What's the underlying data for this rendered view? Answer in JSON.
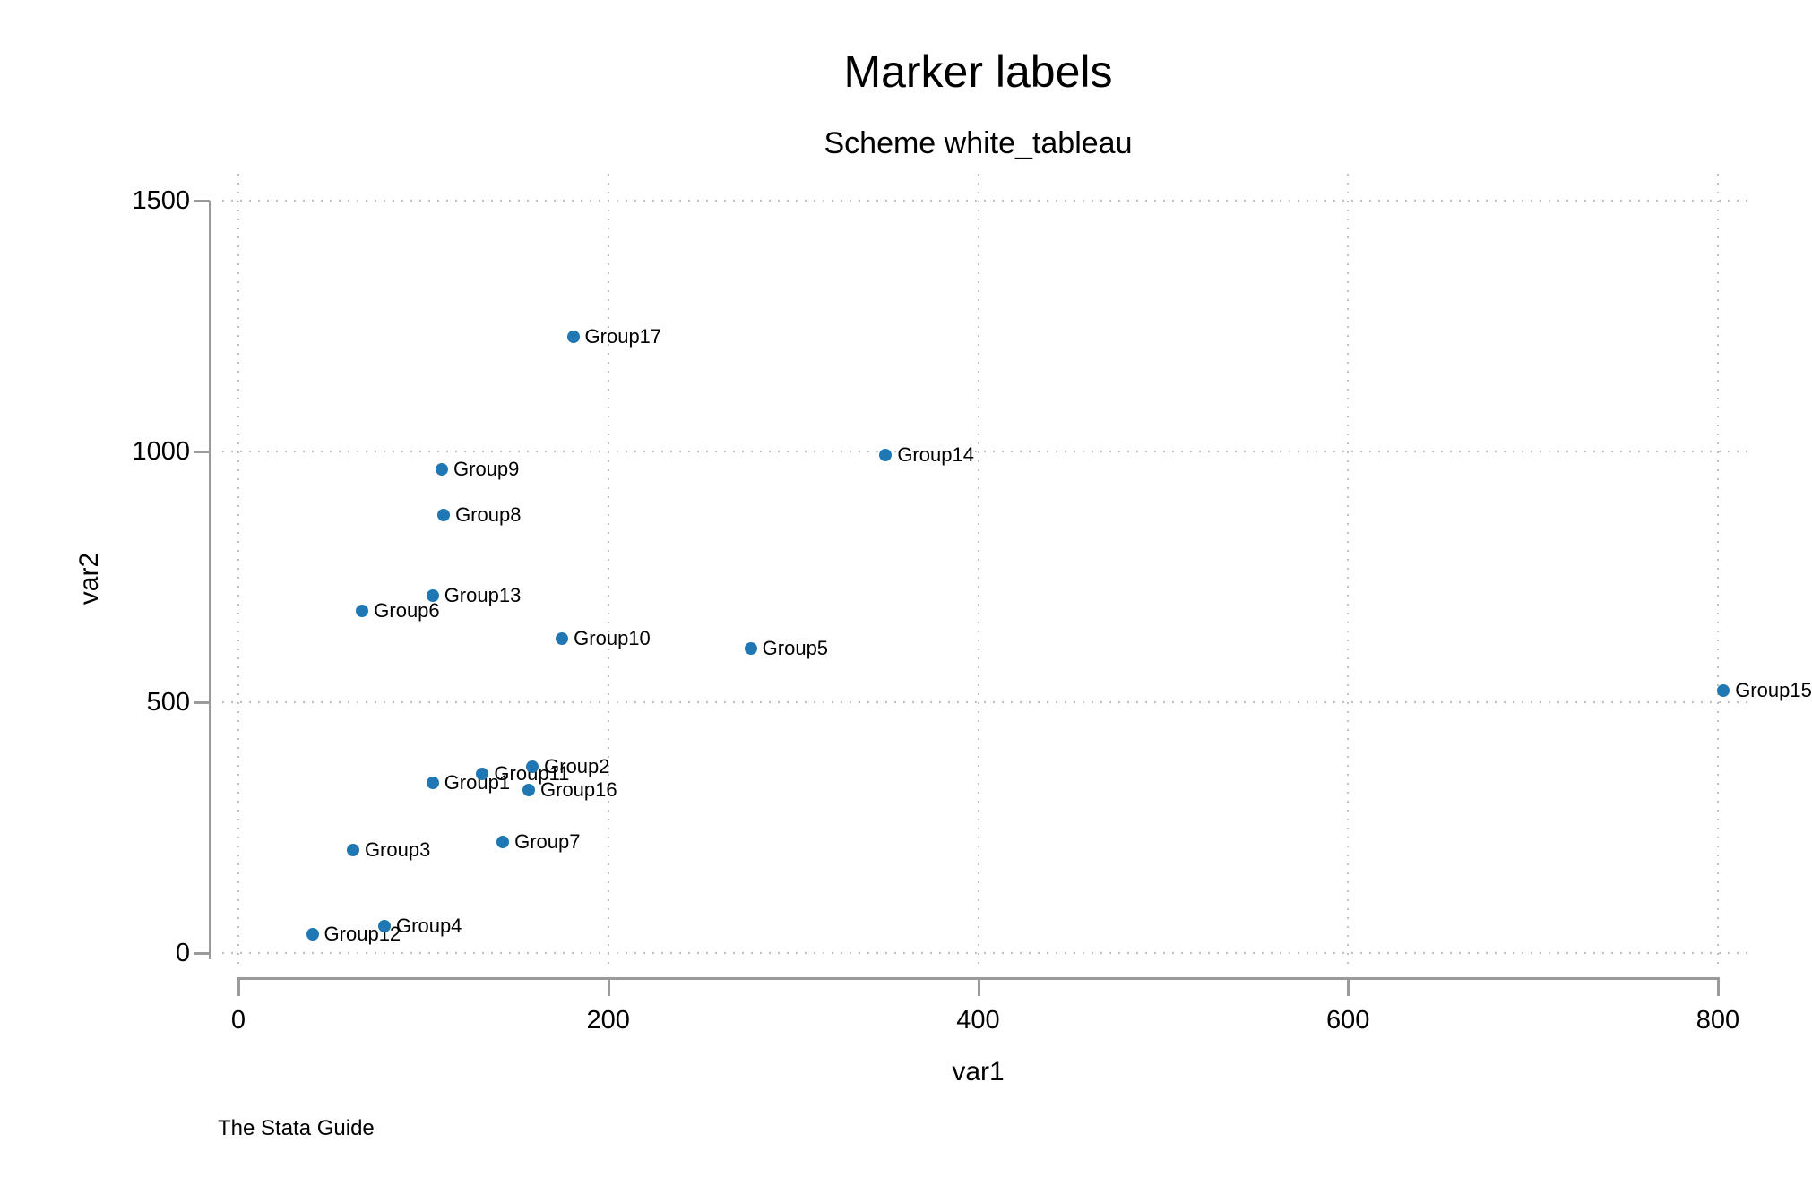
{
  "header": {
    "title": "Marker labels",
    "subtitle": "Scheme white_tableau"
  },
  "caption": "The Stata Guide",
  "chart_data": {
    "type": "scatter",
    "title": "Marker labels",
    "subtitle": "Scheme white_tableau",
    "xlabel": "var1",
    "ylabel": "var2",
    "xlim": [
      0,
      800
    ],
    "ylim": [
      0,
      1500
    ],
    "x_ticks": [
      0,
      200,
      400,
      600,
      800
    ],
    "x_tick_labels": [
      "0",
      "200",
      "400",
      "600",
      "800"
    ],
    "y_ticks": [
      0,
      500,
      1000,
      1500
    ],
    "y_tick_labels": [
      "0",
      "500",
      "1000",
      "1500"
    ],
    "grid": true,
    "grid_style": "dotted",
    "legend_position": "none",
    "marker_color": "#1f77b4",
    "axis_color": "#9a9a9a",
    "gridline_color": "#bfbfbf",
    "points": [
      {
        "label": "Group1",
        "x": 105,
        "y": 340
      },
      {
        "label": "Group2",
        "x": 159,
        "y": 371
      },
      {
        "label": "Group3",
        "x": 62,
        "y": 205
      },
      {
        "label": "Group4",
        "x": 79,
        "y": 54
      },
      {
        "label": "Group5",
        "x": 277,
        "y": 607
      },
      {
        "label": "Group6",
        "x": 67,
        "y": 682
      },
      {
        "label": "Group7",
        "x": 143,
        "y": 221
      },
      {
        "label": "Group8",
        "x": 111,
        "y": 873
      },
      {
        "label": "Group9",
        "x": 110,
        "y": 964
      },
      {
        "label": "Group10",
        "x": 175,
        "y": 627
      },
      {
        "label": "Group11",
        "x": 132,
        "y": 357
      },
      {
        "label": "Group12",
        "x": 40,
        "y": 38
      },
      {
        "label": "Group13",
        "x": 105,
        "y": 712
      },
      {
        "label": "Group14",
        "x": 350,
        "y": 993
      },
      {
        "label": "Group15",
        "x": 803,
        "y": 523
      },
      {
        "label": "Group16",
        "x": 157,
        "y": 325
      },
      {
        "label": "Group17",
        "x": 181,
        "y": 1229
      }
    ]
  }
}
